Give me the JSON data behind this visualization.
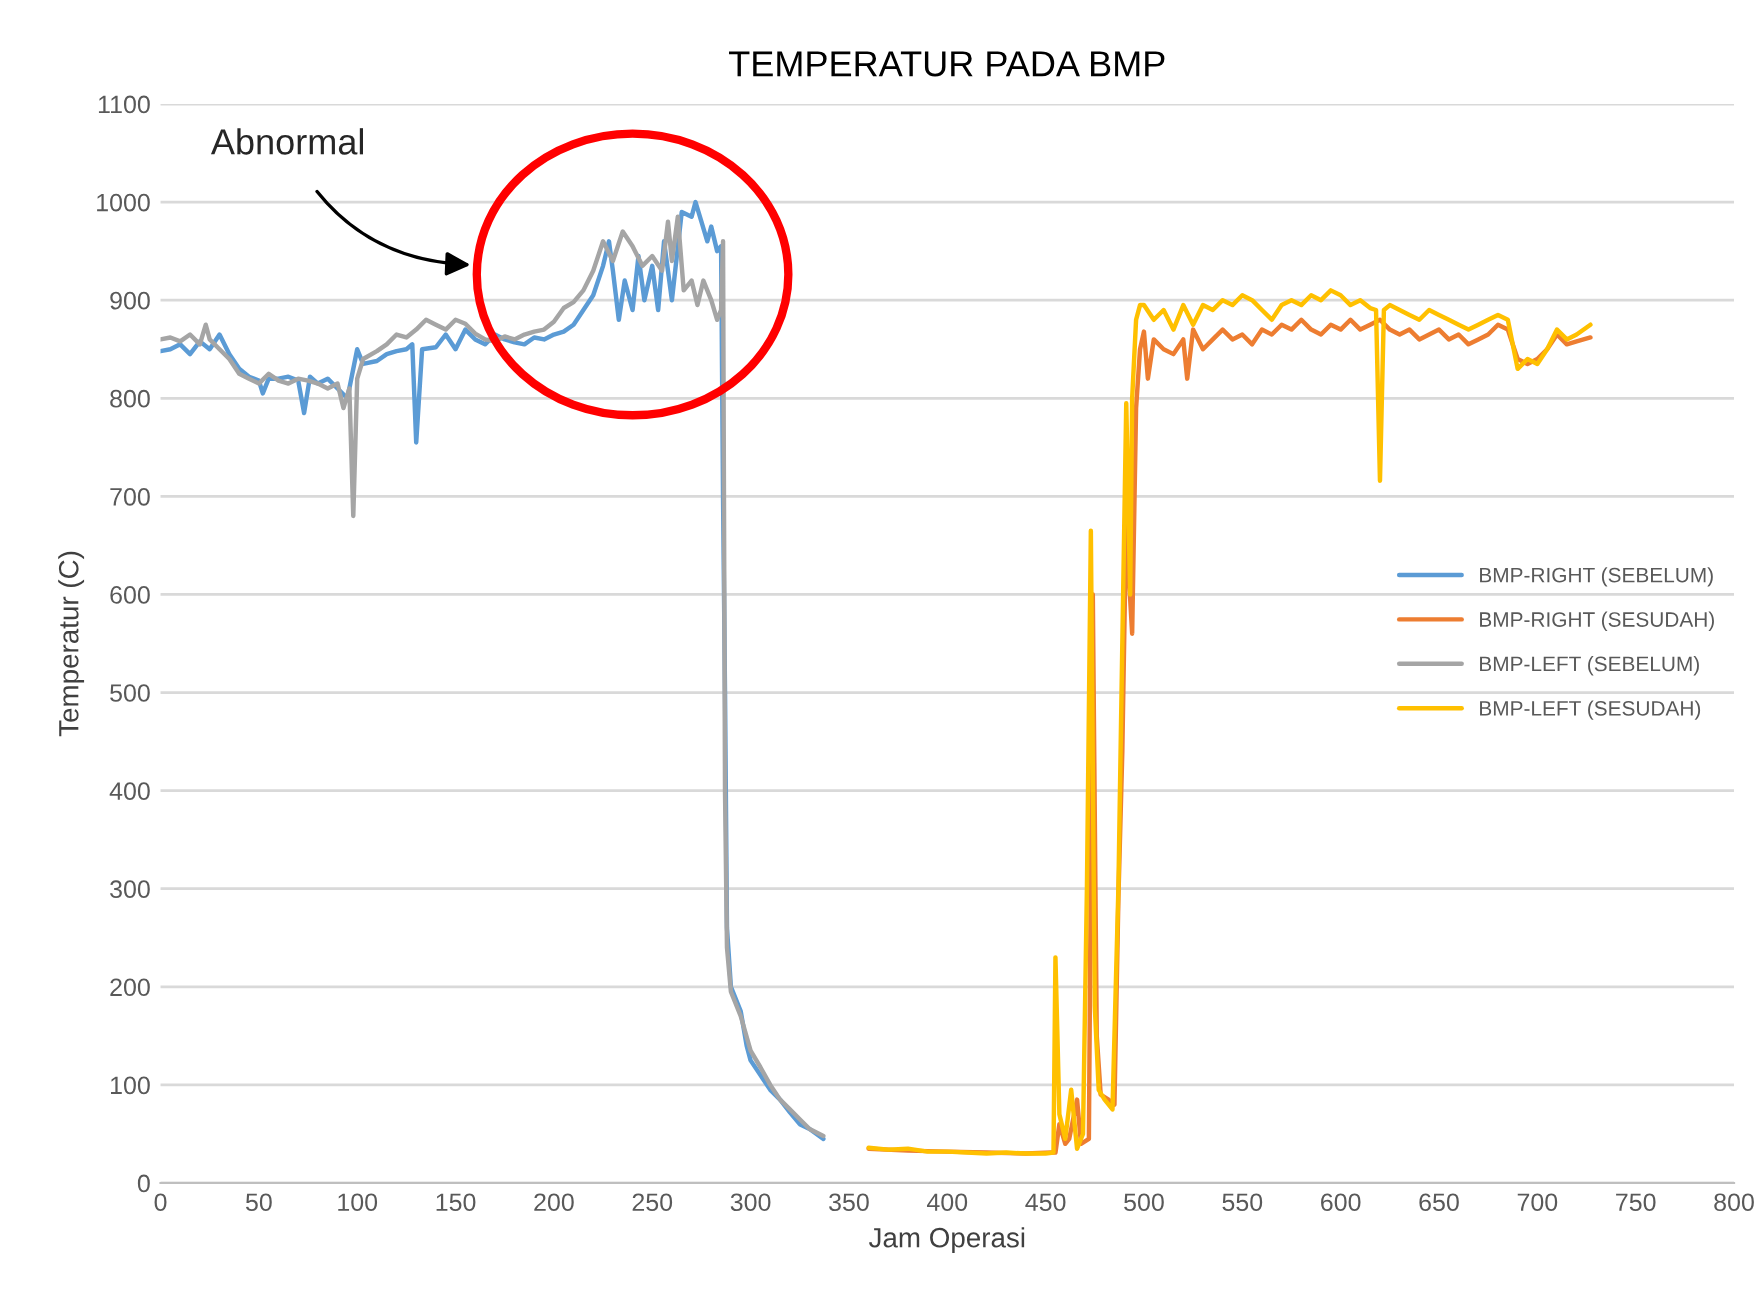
{
  "chart_data": {
    "type": "line",
    "title": "TEMPERATUR PADA BMP",
    "xlabel": "Jam Operasi",
    "ylabel": "Temperatur (C)",
    "xlim": [
      0,
      800
    ],
    "xticks": [
      0,
      50,
      100,
      150,
      200,
      250,
      300,
      350,
      400,
      450,
      500,
      550,
      600,
      650,
      700,
      750,
      800
    ],
    "ylim": [
      0,
      1100
    ],
    "yticks": [
      0,
      100,
      200,
      300,
      400,
      500,
      600,
      700,
      800,
      900,
      1000,
      1100
    ],
    "grid": "y",
    "legend": "right",
    "marker": "none",
    "line_style": "solid",
    "annotations": [
      "Abnormal"
    ],
    "series": [
      {
        "name": "BMP-RIGHT (SEBELUM)",
        "color": "#5b9bd5",
        "x": [
          0,
          5,
          10,
          15,
          20,
          25,
          30,
          35,
          40,
          45,
          50,
          52,
          55,
          60,
          65,
          70,
          73,
          76,
          80,
          85,
          90,
          95,
          100,
          103,
          110,
          115,
          120,
          125,
          128,
          130,
          133,
          140,
          145,
          150,
          155,
          160,
          165,
          170,
          175,
          180,
          185,
          190,
          195,
          200,
          205,
          210,
          215,
          220,
          225,
          228,
          230,
          233,
          236,
          240,
          243,
          246,
          250,
          253,
          256,
          260,
          265,
          270,
          272,
          275,
          278,
          280,
          283,
          285,
          286,
          287,
          288,
          290,
          295,
          298,
          300,
          305,
          310,
          315,
          320,
          325,
          330,
          337
        ],
        "values": [
          848,
          850,
          855,
          845,
          858,
          850,
          865,
          845,
          830,
          822,
          818,
          805,
          820,
          820,
          822,
          818,
          785,
          822,
          815,
          820,
          810,
          800,
          850,
          835,
          838,
          845,
          848,
          850,
          855,
          755,
          850,
          852,
          865,
          850,
          870,
          860,
          855,
          865,
          860,
          857,
          855,
          862,
          860,
          865,
          868,
          875,
          890,
          905,
          935,
          960,
          930,
          880,
          920,
          890,
          945,
          900,
          935,
          890,
          960,
          900,
          990,
          985,
          1000,
          980,
          960,
          975,
          950,
          955,
          700,
          500,
          260,
          200,
          175,
          140,
          125,
          110,
          95,
          85,
          72,
          60,
          55,
          45
        ]
      },
      {
        "name": "BMP-RIGHT (SESUDAH)",
        "color": "#ed7d31",
        "x": [
          360,
          380,
          400,
          420,
          440,
          453,
          455,
          457,
          460,
          462,
          466,
          468,
          472,
          474,
          476,
          478,
          482,
          485,
          487,
          489,
          491,
          492,
          494,
          496,
          498,
          500,
          502,
          505,
          510,
          515,
          520,
          522,
          525,
          530,
          535,
          540,
          545,
          550,
          555,
          560,
          565,
          570,
          575,
          580,
          585,
          590,
          595,
          600,
          605,
          610,
          615,
          620,
          625,
          630,
          635,
          640,
          645,
          650,
          655,
          660,
          665,
          670,
          675,
          680,
          685,
          690,
          695,
          700,
          705,
          710,
          715,
          720,
          727
        ],
        "values": [
          35,
          33,
          32,
          31,
          30,
          31,
          31,
          60,
          40,
          45,
          85,
          40,
          45,
          600,
          150,
          90,
          85,
          80,
          290,
          440,
          680,
          630,
          560,
          790,
          850,
          868,
          820,
          860,
          850,
          845,
          860,
          820,
          870,
          850,
          860,
          870,
          860,
          865,
          855,
          870,
          865,
          875,
          870,
          880,
          870,
          865,
          875,
          870,
          880,
          870,
          875,
          880,
          870,
          865,
          870,
          860,
          865,
          870,
          860,
          865,
          855,
          860,
          865,
          875,
          870,
          840,
          835,
          840,
          850,
          865,
          855,
          858,
          862
        ]
      },
      {
        "name": "BMP-LEFT (SEBELUM)",
        "color": "#a5a5a5",
        "x": [
          0,
          5,
          10,
          15,
          20,
          23,
          25,
          30,
          35,
          40,
          45,
          50,
          55,
          60,
          65,
          70,
          75,
          80,
          85,
          90,
          93,
          96,
          98,
          100,
          103,
          110,
          115,
          120,
          125,
          130,
          135,
          140,
          145,
          150,
          155,
          160,
          165,
          170,
          175,
          180,
          185,
          190,
          195,
          200,
          205,
          210,
          215,
          220,
          225,
          230,
          235,
          240,
          245,
          250,
          255,
          258,
          260,
          263,
          266,
          270,
          273,
          276,
          280,
          283,
          285,
          286,
          287,
          288,
          290,
          295,
          300,
          305,
          310,
          315,
          320,
          325,
          330,
          337
        ],
        "values": [
          860,
          862,
          858,
          865,
          855,
          875,
          860,
          850,
          840,
          825,
          820,
          815,
          825,
          818,
          815,
          820,
          818,
          815,
          810,
          815,
          790,
          810,
          680,
          820,
          840,
          848,
          855,
          865,
          862,
          870,
          880,
          875,
          870,
          880,
          876,
          866,
          860,
          858,
          863,
          860,
          865,
          868,
          870,
          878,
          892,
          898,
          910,
          930,
          960,
          940,
          970,
          955,
          935,
          945,
          930,
          980,
          940,
          985,
          910,
          920,
          895,
          920,
          900,
          880,
          890,
          960,
          400,
          240,
          195,
          170,
          135,
          118,
          100,
          85,
          75,
          65,
          55,
          48
        ]
      },
      {
        "name": "BMP-LEFT (SESUDAH)",
        "color": "#ffc000",
        "x": [
          360,
          370,
          380,
          390,
          400,
          410,
          420,
          430,
          440,
          450,
          454,
          455,
          457,
          460,
          463,
          466,
          469,
          471,
          473,
          475,
          477,
          480,
          484,
          487,
          489,
          491,
          493,
          494,
          496,
          498,
          500,
          505,
          510,
          515,
          520,
          525,
          530,
          535,
          540,
          545,
          550,
          555,
          560,
          565,
          570,
          575,
          580,
          585,
          590,
          595,
          600,
          605,
          610,
          615,
          618,
          620,
          622,
          625,
          630,
          635,
          640,
          645,
          650,
          655,
          660,
          665,
          670,
          675,
          680,
          685,
          690,
          695,
          700,
          705,
          710,
          715,
          720,
          727
        ],
        "values": [
          36,
          34,
          35,
          32,
          32,
          31,
          30,
          31,
          30,
          30,
          31,
          230,
          70,
          45,
          95,
          35,
          50,
          300,
          665,
          180,
          95,
          85,
          75,
          300,
          550,
          795,
          600,
          800,
          880,
          895,
          895,
          880,
          890,
          870,
          895,
          875,
          895,
          890,
          900,
          895,
          905,
          900,
          890,
          880,
          895,
          900,
          895,
          905,
          900,
          910,
          905,
          895,
          900,
          892,
          890,
          716,
          890,
          895,
          890,
          885,
          880,
          890,
          885,
          880,
          875,
          870,
          875,
          880,
          885,
          880,
          830,
          840,
          835,
          850,
          870,
          860,
          865,
          875
        ]
      }
    ]
  }
}
